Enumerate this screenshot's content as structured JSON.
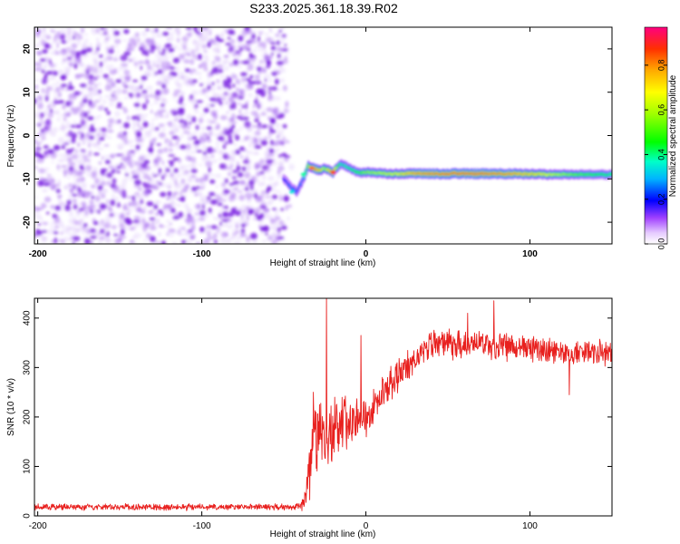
{
  "title": "S233.2025.361.18.39.R02",
  "colors": {
    "speckle": "#8a2be2",
    "snr_line": "#e8201e",
    "frame": "#000000"
  },
  "chart_data": [
    {
      "type": "heatmap",
      "name": "spectrogram",
      "xlabel": "Height of straight line (km)",
      "ylabel": "Frequency (Hz)",
      "xlim": [
        -202,
        150
      ],
      "ylim": [
        -25,
        25
      ],
      "xticks": [
        -200,
        -100,
        0,
        100
      ],
      "xtick_labels": [
        "-200",
        "-100",
        "0",
        "100"
      ],
      "yticks": [
        -20,
        -10,
        0,
        10,
        20
      ],
      "ytick_labels": [
        "-20",
        "-10",
        "0",
        "10",
        "20"
      ],
      "noise_region_km": [
        -202,
        -48
      ],
      "signal_track": {
        "x": [
          -50,
          -45,
          -42,
          -38,
          -35,
          -32,
          -28,
          -25,
          -20,
          -15,
          -10,
          -5,
          0,
          10,
          20,
          30,
          50,
          70,
          90,
          110,
          130,
          150
        ],
        "freq_hz": [
          -10,
          -12,
          -13,
          -10,
          -7,
          -7.5,
          -8,
          -7.5,
          -8.5,
          -6.5,
          -7.5,
          -8.5,
          -8.5,
          -8.8,
          -8.8,
          -8.8,
          -8.8,
          -8.8,
          -8.8,
          -9,
          -9,
          -9
        ],
        "peak_amplitude": [
          0.2,
          0.3,
          0.25,
          0.3,
          0.6,
          0.9,
          0.8,
          0.6,
          0.9,
          0.4,
          0.45,
          0.5,
          0.6,
          0.65,
          0.7,
          0.85,
          0.9,
          0.9,
          0.85,
          0.7,
          0.55,
          0.45
        ]
      },
      "colorbar": {
        "label": "Normalized spectral amplitude",
        "range": [
          0,
          0.97
        ],
        "ticks": [
          0.0,
          0.2,
          0.4,
          0.6,
          0.8
        ],
        "tick_labels": [
          "0.0",
          "0.2",
          "0.4",
          "0.6",
          "0.8"
        ]
      }
    },
    {
      "type": "line",
      "name": "snr",
      "xlabel": "Height of straight line (km)",
      "ylabel": "SNR (10 * v/v)",
      "xlim": [
        -202,
        150
      ],
      "ylim": [
        0,
        440
      ],
      "xticks": [
        -200,
        -100,
        0,
        100
      ],
      "xtick_labels": [
        "-200",
        "-100",
        "0",
        "100"
      ],
      "yticks": [
        0,
        100,
        200,
        300,
        400
      ],
      "ytick_labels": [
        "0",
        "100",
        "200",
        "300",
        "400"
      ],
      "series": [
        {
          "name": "SNR",
          "envelope_x": [
            -202,
            -40,
            -38,
            -35,
            -30,
            -25,
            -20,
            -10,
            0,
            10,
            20,
            30,
            40,
            60,
            80,
            100,
            120,
            150
          ],
          "envelope_y": [
            18,
            18,
            25,
            70,
            160,
            170,
            175,
            190,
            200,
            240,
            285,
            320,
            345,
            350,
            345,
            340,
            330,
            330
          ],
          "noise_amplitude": [
            8,
            8,
            20,
            60,
            90,
            90,
            80,
            70,
            55,
            45,
            40,
            40,
            35,
            35,
            35,
            32,
            30,
            30
          ],
          "spikes": [
            {
              "x": -24,
              "y": 440
            },
            {
              "x": -32,
              "y": 250
            },
            {
              "x": -19,
              "y": 240
            },
            {
              "x": -3,
              "y": 365
            },
            {
              "x": 78,
              "y": 435
            },
            {
              "x": 124,
              "y": 245
            },
            {
              "x": 62,
              "y": 410
            }
          ]
        }
      ]
    }
  ]
}
